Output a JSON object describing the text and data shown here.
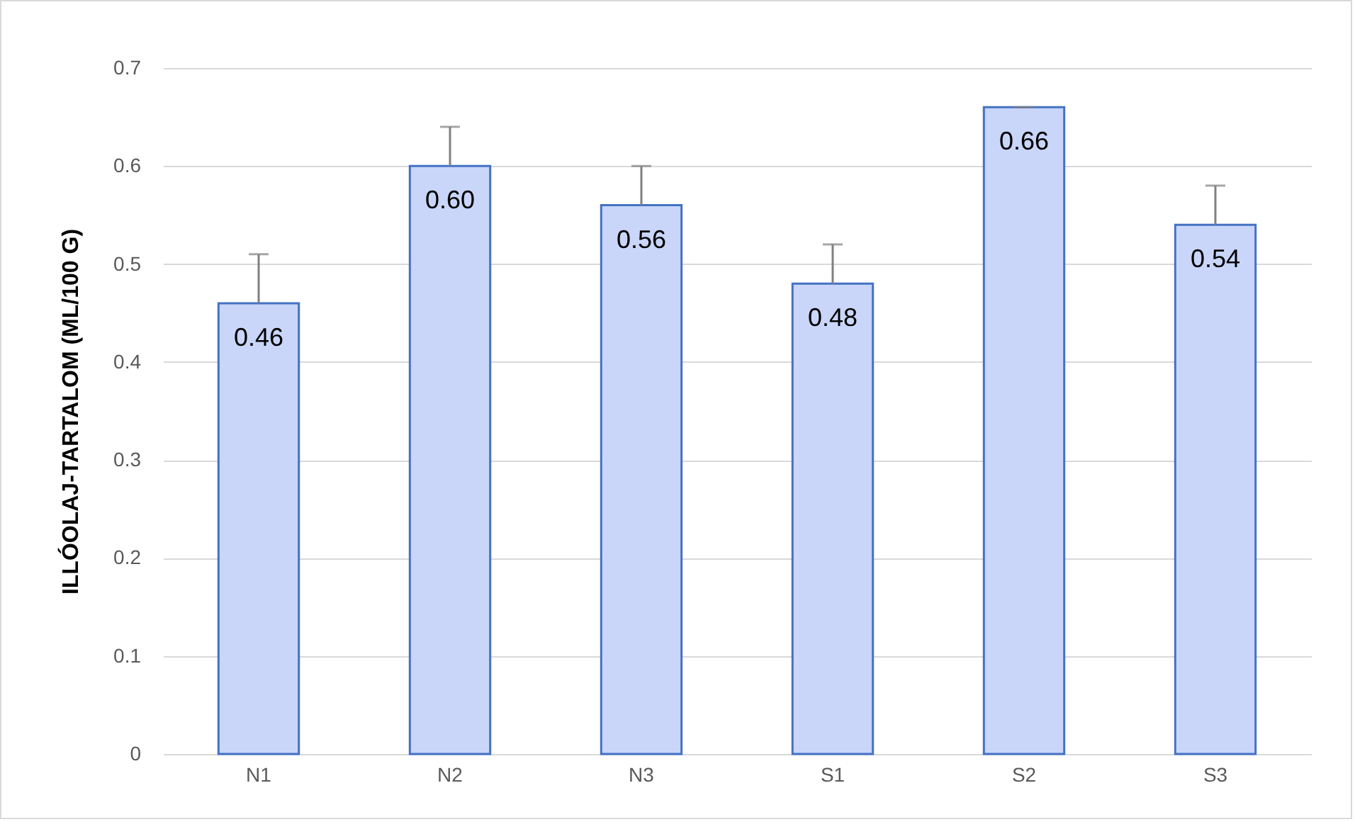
{
  "chart_data": {
    "type": "bar",
    "ylabel": "ILLÓOLAJ-TARTALOM (ML/100 G)",
    "categories": [
      "N1",
      "N2",
      "N3",
      "S1",
      "S2",
      "S3"
    ],
    "values": [
      0.46,
      0.6,
      0.56,
      0.48,
      0.66,
      0.54
    ],
    "errors": [
      [
        0.46,
        0.51
      ],
      [
        0.6,
        0.64
      ],
      [
        0.56,
        0.6
      ],
      [
        0.48,
        0.52
      ],
      [
        0.66,
        0.66
      ],
      [
        0.54,
        0.58
      ]
    ],
    "color": "#c9d6f9",
    "ylim": [
      0,
      0.7
    ],
    "yticks": [
      0,
      0.1,
      0.2,
      0.3,
      0.4,
      0.5,
      0.6,
      0.7
    ],
    "value_labels": [
      "0.46",
      "0.60",
      "0.56",
      "0.48",
      "0.66",
      "0.54"
    ],
    "grid": "y"
  }
}
